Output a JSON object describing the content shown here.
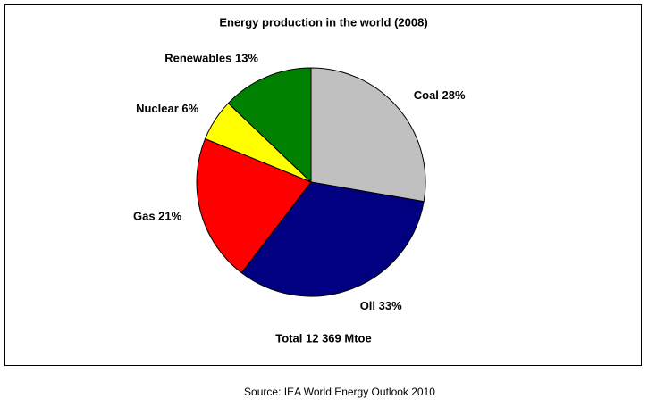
{
  "chart_data": {
    "type": "pie",
    "title": "Energy production in the world (2008)",
    "values": [
      28,
      33,
      21,
      6,
      13
    ],
    "value_labels": [
      "Coal 28%",
      "Oil 33%",
      "Gas 21%",
      "Nuclear 6%",
      "Renewables 13%"
    ],
    "colors": [
      "#c0c0c0",
      "#000080",
      "#ff0000",
      "#ffff00",
      "#008000"
    ],
    "annotation": "Total 12 369 Mtoe",
    "source": "Source: IEA World Energy Outlook 2010"
  }
}
